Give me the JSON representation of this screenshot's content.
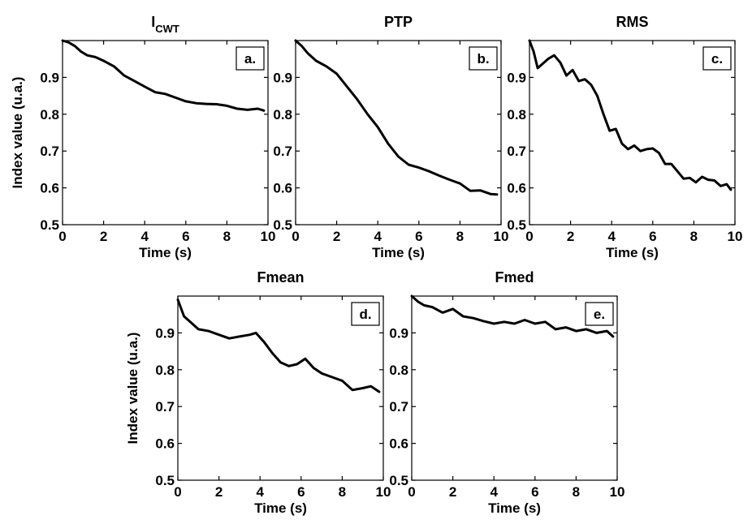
{
  "figure": {
    "ylabel": "Index value (u.a.)",
    "xlabel": "Time (s)"
  },
  "chart_data": [
    {
      "type": "line",
      "title": "I",
      "title_sub": "CWT",
      "tag": "a.",
      "xlabel": "Time (s)",
      "ylabel": "Index value (u.a.)",
      "xlim": [
        0,
        10
      ],
      "ylim": [
        0.5,
        1.0
      ],
      "xticks": [
        "0",
        "2",
        "4",
        "6",
        "8",
        "10"
      ],
      "yticks": [
        "0.5",
        "0.6",
        "0.7",
        "0.8",
        "0.9"
      ],
      "series": [
        {
          "x": [
            0,
            0.3,
            0.6,
            0.9,
            1.2,
            1.6,
            2.0,
            2.5,
            3.0,
            3.5,
            4.0,
            4.5,
            5.0,
            5.5,
            6.0,
            6.5,
            7.0,
            7.5,
            8.0,
            8.5,
            9.0,
            9.5,
            9.8
          ],
          "y": [
            1.0,
            0.995,
            0.985,
            0.97,
            0.96,
            0.955,
            0.945,
            0.93,
            0.905,
            0.89,
            0.875,
            0.86,
            0.855,
            0.845,
            0.835,
            0.83,
            0.828,
            0.827,
            0.823,
            0.815,
            0.812,
            0.815,
            0.81
          ]
        }
      ]
    },
    {
      "type": "line",
      "title": "PTP",
      "tag": "b.",
      "xlabel": "Time (s)",
      "xlim": [
        0,
        10
      ],
      "ylim": [
        0.5,
        1.0
      ],
      "xticks": [
        "0",
        "2",
        "4",
        "6",
        "8",
        "10"
      ],
      "yticks": [
        "0.5",
        "0.6",
        "0.7",
        "0.8",
        "0.9"
      ],
      "series": [
        {
          "x": [
            0,
            0.3,
            0.6,
            1.0,
            1.5,
            2.0,
            2.5,
            3.0,
            3.5,
            4.0,
            4.5,
            5.0,
            5.5,
            6.0,
            6.5,
            7.0,
            7.5,
            8.0,
            8.5,
            9.0,
            9.5,
            9.8
          ],
          "y": [
            1.0,
            0.985,
            0.965,
            0.945,
            0.93,
            0.91,
            0.875,
            0.84,
            0.8,
            0.765,
            0.72,
            0.685,
            0.663,
            0.655,
            0.645,
            0.633,
            0.622,
            0.612,
            0.592,
            0.593,
            0.583,
            0.582
          ]
        }
      ]
    },
    {
      "type": "line",
      "title": "RMS",
      "tag": "c.",
      "xlabel": "Time (s)",
      "xlim": [
        0,
        10
      ],
      "ylim": [
        0.5,
        1.0
      ],
      "xticks": [
        "0",
        "2",
        "4",
        "6",
        "8",
        "10"
      ],
      "yticks": [
        "0.5",
        "0.6",
        "0.7",
        "0.8",
        "0.9"
      ],
      "series": [
        {
          "x": [
            0,
            0.2,
            0.4,
            0.6,
            0.9,
            1.2,
            1.5,
            1.8,
            2.1,
            2.4,
            2.7,
            3.0,
            3.3,
            3.6,
            3.9,
            4.2,
            4.5,
            4.8,
            5.1,
            5.4,
            5.7,
            6.0,
            6.3,
            6.6,
            6.9,
            7.2,
            7.5,
            7.8,
            8.1,
            8.4,
            8.7,
            9.0,
            9.3,
            9.6,
            9.8
          ],
          "y": [
            1.0,
            0.97,
            0.925,
            0.935,
            0.95,
            0.96,
            0.94,
            0.905,
            0.92,
            0.89,
            0.895,
            0.88,
            0.85,
            0.8,
            0.755,
            0.76,
            0.72,
            0.705,
            0.715,
            0.7,
            0.705,
            0.707,
            0.695,
            0.665,
            0.665,
            0.645,
            0.625,
            0.627,
            0.615,
            0.63,
            0.622,
            0.62,
            0.605,
            0.61,
            0.595
          ]
        }
      ]
    },
    {
      "type": "line",
      "title": "Fmean",
      "tag": "d.",
      "xlabel": "Time (s)",
      "ylabel": "Index value (u.a.)",
      "xlim": [
        0,
        10
      ],
      "ylim": [
        0.5,
        1.0
      ],
      "xticks": [
        "0",
        "2",
        "4",
        "6",
        "8",
        "10"
      ],
      "yticks": [
        "0.5",
        "0.6",
        "0.7",
        "0.8",
        "0.9"
      ],
      "series": [
        {
          "x": [
            0,
            0.3,
            0.6,
            1.0,
            1.5,
            2.0,
            2.5,
            3.0,
            3.5,
            3.8,
            4.2,
            4.6,
            5.0,
            5.4,
            5.8,
            6.2,
            6.6,
            7.0,
            7.5,
            8.0,
            8.5,
            9.0,
            9.4,
            9.8
          ],
          "y": [
            0.99,
            0.945,
            0.93,
            0.91,
            0.905,
            0.895,
            0.885,
            0.89,
            0.895,
            0.9,
            0.875,
            0.845,
            0.82,
            0.81,
            0.815,
            0.83,
            0.805,
            0.79,
            0.78,
            0.77,
            0.745,
            0.75,
            0.755,
            0.74
          ]
        }
      ]
    },
    {
      "type": "line",
      "title": "Fmed",
      "tag": "e.",
      "xlabel": "Time (s)",
      "xlim": [
        0,
        10
      ],
      "ylim": [
        0.5,
        1.0
      ],
      "xticks": [
        "0",
        "2",
        "4",
        "6",
        "8",
        "10"
      ],
      "yticks": [
        "0.5",
        "0.6",
        "0.7",
        "0.8",
        "0.9"
      ],
      "series": [
        {
          "x": [
            0,
            0.3,
            0.6,
            1.0,
            1.5,
            2.0,
            2.5,
            3.0,
            3.5,
            4.0,
            4.5,
            5.0,
            5.5,
            6.0,
            6.5,
            7.0,
            7.5,
            8.0,
            8.5,
            9.0,
            9.5,
            9.8
          ],
          "y": [
            1.0,
            0.985,
            0.975,
            0.97,
            0.955,
            0.965,
            0.945,
            0.94,
            0.932,
            0.925,
            0.93,
            0.925,
            0.935,
            0.925,
            0.93,
            0.91,
            0.915,
            0.905,
            0.91,
            0.9,
            0.905,
            0.89
          ]
        }
      ]
    }
  ]
}
